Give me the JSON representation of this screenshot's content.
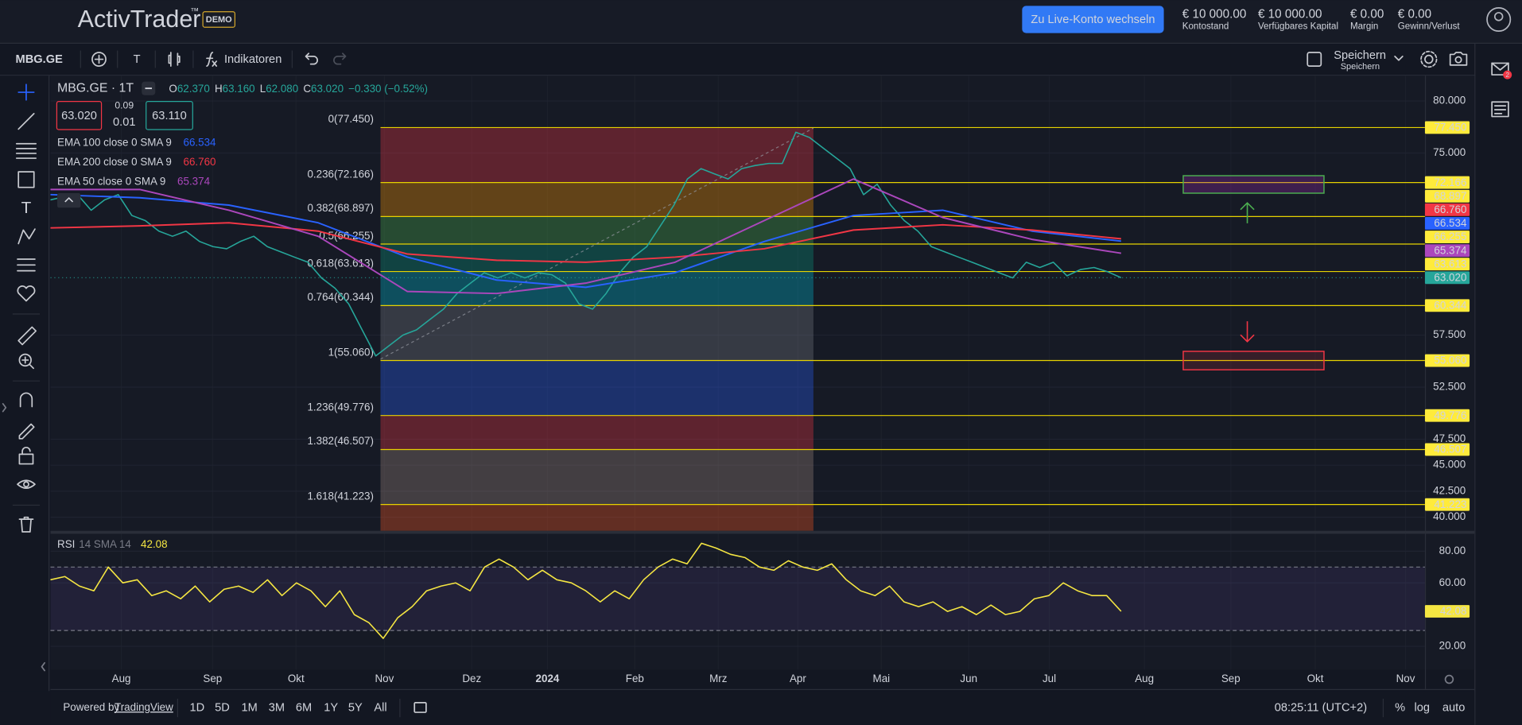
{
  "header": {
    "brand": "ActivTrader",
    "trademark": "™",
    "badge": "DEMO",
    "live_button": "Zu Live-Konto wechseln",
    "stats": [
      {
        "value": "€ 10 000.00",
        "label": "Kontostand"
      },
      {
        "value": "€ 10 000.00",
        "label": "Verfügbares Kapital"
      },
      {
        "value": "€ 0.00",
        "label": "Margin"
      },
      {
        "value": "€ 0.00",
        "label": "Gewinn/Verlust"
      }
    ]
  },
  "toolbar": {
    "symbol": "MBG.GE",
    "text_tool": "T",
    "indicators": "Indikatoren",
    "save": "Speichern",
    "save_sub": "Speichern"
  },
  "legend": {
    "title": "MBG.GE · 1T",
    "ohlc": [
      {
        "key": "O",
        "value": "62.370"
      },
      {
        "key": "H",
        "value": "63.160"
      },
      {
        "key": "L",
        "value": "62.080"
      },
      {
        "key": "C",
        "value": "63.020"
      }
    ],
    "change": "−0.330 (−0.52%)",
    "bid": "63.020",
    "spread_top": "0.09",
    "spread_bottom": "0.01",
    "ask": "63.110"
  },
  "chart_data": [
    {
      "type": "line",
      "ylim": [
        38.69,
        82.52
      ],
      "yticks": [
        {
          "value": 80,
          "label": "80.000"
        },
        {
          "value": 75,
          "label": "75.000"
        },
        {
          "value": 57.5,
          "label": "57.500"
        },
        {
          "value": 52.5,
          "label": "52.500"
        },
        {
          "value": 47.5,
          "label": "47.500"
        },
        {
          "value": 45,
          "label": "45.000"
        },
        {
          "value": 42.5,
          "label": "42.500"
        },
        {
          "value": 40,
          "label": "40.000"
        }
      ],
      "grid": true,
      "series": [
        {
          "name": "MBG.GE",
          "color": "#26a69a",
          "values": [
            70.5,
            70.8,
            71.0,
            69.5,
            70.5,
            71.0,
            69.0,
            68.5,
            67.5,
            67.0,
            67.5,
            66.5,
            66.0,
            65.8,
            66.5,
            67.0,
            66.0,
            65.5,
            65.0,
            64.5,
            63.0,
            62.0,
            60.5,
            58.0,
            55.5,
            56.5,
            57.5,
            58.0,
            59.0,
            60.0,
            61.5,
            62.5,
            63.5,
            63.0,
            63.5,
            63.0,
            63.5,
            63.3,
            62.5,
            60.5,
            60.0,
            61.5,
            63.5,
            65.0,
            66.0,
            68.0,
            70.0,
            72.5,
            73.5,
            73.0,
            72.5,
            73.5,
            73.8,
            74.0,
            74.0,
            77.0,
            76.5,
            75.5,
            74.5,
            73.5,
            71.0,
            72.0,
            70.0,
            68.5,
            67.5,
            66.0,
            65.5,
            65.0,
            64.5,
            64.0,
            63.5,
            63.0,
            64.5,
            64.0,
            64.5,
            63.2,
            63.8,
            64.0,
            63.6,
            63.02
          ]
        },
        {
          "name": "EMA 100 close 0 SMA 9",
          "color": "#2962ff",
          "last_label": "66.534",
          "values": [
            71.0,
            70.7,
            70.0,
            68.3,
            65.0,
            62.8,
            62.1,
            63.5,
            66.5,
            69.0,
            69.5,
            67.5,
            66.534
          ]
        },
        {
          "name": "EMA 200 close 0 SMA 9",
          "color": "#f23645",
          "last_label": "66.760",
          "values": [
            67.8,
            68.0,
            68.3,
            67.5,
            65.3,
            64.7,
            64.5,
            65.0,
            65.8,
            67.6,
            68.1,
            67.6,
            66.76
          ]
        },
        {
          "name": "EMA 50 close 0 SMA 9",
          "color": "#ab47bc",
          "last_label": "65.374",
          "values": [
            71.5,
            71.5,
            69.5,
            67.0,
            61.7,
            61.5,
            62.5,
            64.5,
            68.5,
            72.5,
            68.8,
            66.7,
            65.374
          ]
        }
      ],
      "last_price": {
        "value": 63.02,
        "label": "63.020",
        "color": "#26a69a"
      },
      "fib_levels": [
        {
          "label": "0(77.450)",
          "value": 77.45,
          "tag": "77.450",
          "label_color": "#787b86",
          "band_color": "#f23645"
        },
        {
          "label": "0.236(72.166)",
          "value": 72.166,
          "tag": "72.166",
          "label_color": "#f23645",
          "band_color": "#ff9800"
        },
        {
          "label": "0.382(68.897)",
          "value": 68.897,
          "tag": "68.897",
          "label_color": "#ff9800",
          "band_color": "#4caf50"
        },
        {
          "label": "0.5(66.255)",
          "value": 66.255,
          "tag": "66.255",
          "label_color": "#4caf50",
          "band_color": "#089981"
        },
        {
          "label": "0.618(63.613)",
          "value": 63.613,
          "tag": "63.613",
          "label_color": "#089981",
          "band_color": "#00bcd4"
        },
        {
          "label": "0.764(60.344)",
          "value": 60.344,
          "tag": "60.344",
          "label_color": "#00bcd4",
          "band_color": "#787b86"
        },
        {
          "label": "1(55.060)",
          "value": 55.06,
          "tag": "55.060",
          "label_color": "#787b86",
          "band_color": "#2962ff"
        },
        {
          "label": "1.236(49.776)",
          "value": 49.776,
          "tag": "49.776",
          "label_color": "#ff9800",
          "band_color": "#f23645"
        },
        {
          "label": "1.382(46.507)",
          "value": 46.507,
          "tag": "46.507",
          "label_color": "#f23645",
          "band_color": "#a1887f"
        },
        {
          "label": "1.618(41.223)",
          "value": 41.223,
          "tag": "41.223",
          "label_color": "#2962ff",
          "band_color": "#ff5722"
        }
      ],
      "fib_line_color": "#e6d200"
    },
    {
      "type": "line",
      "name": "RSI",
      "params": "14 SMA 14",
      "ylim": [
        5.3,
        91.0
      ],
      "yticks": [
        {
          "value": 80,
          "label": "80.00"
        },
        {
          "value": 60,
          "label": "60.00"
        },
        {
          "value": 20,
          "label": "20.00"
        }
      ],
      "grid": true,
      "bands": [
        30,
        70
      ],
      "band_color": "#7e57c2",
      "series": [
        {
          "name": "RSI",
          "color": "#f5e642",
          "value_label": "42.08",
          "values": [
            62,
            64,
            58,
            55,
            70,
            60,
            62,
            52,
            55,
            50,
            58,
            48,
            56,
            58,
            54,
            62,
            52,
            60,
            55,
            45,
            55,
            40,
            35,
            25,
            38,
            45,
            55,
            58,
            60,
            55,
            70,
            75,
            70,
            62,
            68,
            62,
            60,
            55,
            48,
            55,
            50,
            62,
            70,
            75,
            72,
            85,
            82,
            78,
            76,
            70,
            68,
            74,
            70,
            68,
            72,
            62,
            55,
            52,
            58,
            48,
            45,
            48,
            42,
            45,
            40,
            46,
            40,
            42,
            50,
            52,
            60,
            55,
            52,
            52,
            42.08
          ]
        }
      ]
    }
  ],
  "time_axis": [
    {
      "label": "Aug"
    },
    {
      "label": "Sep"
    },
    {
      "label": "Okt"
    },
    {
      "label": "Nov"
    },
    {
      "label": "Dez"
    },
    {
      "label": "2024",
      "major": true
    },
    {
      "label": "Feb"
    },
    {
      "label": "Mrz"
    },
    {
      "label": "Apr"
    },
    {
      "label": "Mai"
    },
    {
      "label": "Jun"
    },
    {
      "label": "Jul"
    },
    {
      "label": "Aug"
    },
    {
      "label": "Sep"
    },
    {
      "label": "Okt"
    },
    {
      "label": "Nov"
    }
  ],
  "footer": {
    "powered_by": "Powered by",
    "provider": "TradingView",
    "ranges": [
      "1D",
      "5D",
      "1M",
      "3M",
      "6M",
      "1Y",
      "5Y",
      "All"
    ],
    "clock": "08:25:11 (UTC+2)",
    "percent": "%",
    "log": "log",
    "auto": "auto"
  },
  "sidebar": {
    "mail_badge": "2"
  }
}
